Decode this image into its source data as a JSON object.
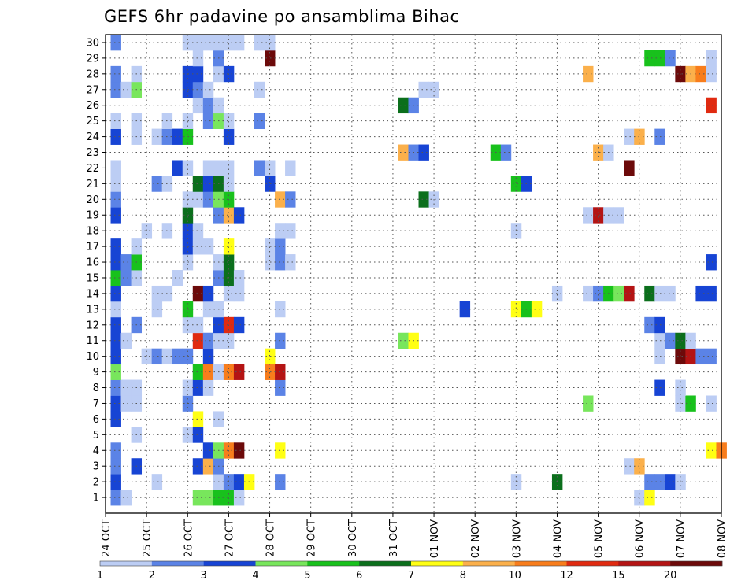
{
  "chart_data": {
    "type": "heatmap",
    "title": "GEFS 6hr padavine po ansamblima Bihac",
    "x_labels": [
      "24 OCT",
      "25 OCT",
      "26 OCT",
      "27 OCT",
      "28 OCT",
      "29 OCT",
      "30 OCT",
      "31 OCT",
      "01 NOV",
      "02 NOV",
      "03 NOV",
      "04 NOV",
      "05 NOV",
      "06 NOV",
      "07 NOV",
      "08 NOV"
    ],
    "y_labels": [
      "1",
      "2",
      "3",
      "4",
      "5",
      "6",
      "7",
      "8",
      "9",
      "10",
      "11",
      "12",
      "13",
      "14",
      "15",
      "16",
      "17",
      "18",
      "19",
      "20",
      "21",
      "22",
      "23",
      "24",
      "25",
      "26",
      "27",
      "28",
      "29",
      "30"
    ],
    "steps_per_day": 4,
    "grid": true,
    "colorbar": {
      "labels": [
        "1",
        "2",
        "3",
        "4",
        "5",
        "6",
        "7",
        "8",
        "10",
        "12",
        "15",
        "20"
      ],
      "colors": [
        "#bccdf4",
        "#5b83e6",
        "#1744d4",
        "#78e65c",
        "#18c11c",
        "#0b6f1c",
        "#ffff14",
        "#fbb04b",
        "#f87d1c",
        "#e02a10",
        "#b41414",
        "#6c0a0a"
      ]
    },
    "cells": [
      {
        "m": 1,
        "t": [
          [
            1,
            2
          ],
          [
            2,
            1
          ],
          [
            9,
            4
          ],
          [
            10,
            4
          ],
          [
            11,
            5
          ],
          [
            12,
            5
          ],
          [
            13,
            1
          ],
          [
            52,
            1
          ],
          [
            53,
            7
          ]
        ]
      },
      {
        "m": 2,
        "t": [
          [
            1,
            3
          ],
          [
            5,
            1
          ],
          [
            11,
            1
          ],
          [
            12,
            2
          ],
          [
            13,
            3
          ],
          [
            14,
            7
          ],
          [
            17,
            2
          ],
          [
            40,
            1
          ],
          [
            44,
            6
          ],
          [
            53,
            2
          ],
          [
            54,
            2
          ],
          [
            55,
            3
          ],
          [
            56,
            1
          ]
        ]
      },
      {
        "m": 3,
        "t": [
          [
            1,
            2
          ],
          [
            3,
            3
          ],
          [
            9,
            3
          ],
          [
            10,
            8
          ],
          [
            11,
            2
          ],
          [
            51,
            1
          ],
          [
            52,
            8
          ]
        ]
      },
      {
        "m": 4,
        "t": [
          [
            1,
            2
          ],
          [
            10,
            3
          ],
          [
            11,
            4
          ],
          [
            12,
            9
          ],
          [
            13,
            12
          ],
          [
            17,
            7
          ],
          [
            59,
            7
          ],
          [
            60,
            9
          ]
        ]
      },
      {
        "m": 5,
        "t": [
          [
            3,
            1
          ],
          [
            8,
            1
          ],
          [
            9,
            3
          ]
        ]
      },
      {
        "m": 6,
        "t": [
          [
            1,
            3
          ],
          [
            9,
            7
          ],
          [
            11,
            1
          ]
        ]
      },
      {
        "m": 7,
        "t": [
          [
            1,
            3
          ],
          [
            2,
            1
          ],
          [
            3,
            1
          ],
          [
            8,
            2
          ],
          [
            47,
            4
          ],
          [
            56,
            1
          ],
          [
            57,
            5
          ],
          [
            59,
            1
          ]
        ]
      },
      {
        "m": 8,
        "t": [
          [
            1,
            2
          ],
          [
            2,
            1
          ],
          [
            3,
            1
          ],
          [
            8,
            1
          ],
          [
            9,
            3
          ],
          [
            10,
            1
          ],
          [
            17,
            2
          ],
          [
            54,
            3
          ],
          [
            56,
            1
          ]
        ]
      },
      {
        "m": 9,
        "t": [
          [
            1,
            4
          ],
          [
            9,
            5
          ],
          [
            10,
            9
          ],
          [
            11,
            1
          ],
          [
            12,
            9
          ],
          [
            13,
            11
          ],
          [
            16,
            9
          ],
          [
            17,
            11
          ]
        ]
      },
      {
        "m": 10,
        "t": [
          [
            1,
            3
          ],
          [
            4,
            1
          ],
          [
            5,
            2
          ],
          [
            6,
            1
          ],
          [
            7,
            2
          ],
          [
            8,
            2
          ],
          [
            10,
            3
          ],
          [
            16,
            7
          ],
          [
            54,
            1
          ],
          [
            56,
            12
          ],
          [
            57,
            11
          ],
          [
            58,
            2
          ],
          [
            59,
            2
          ]
        ]
      },
      {
        "m": 11,
        "t": [
          [
            1,
            3
          ],
          [
            2,
            1
          ],
          [
            9,
            10
          ],
          [
            10,
            2
          ],
          [
            11,
            1
          ],
          [
            12,
            1
          ],
          [
            17,
            2
          ],
          [
            29,
            4
          ],
          [
            30,
            7
          ],
          [
            54,
            1
          ],
          [
            55,
            2
          ],
          [
            56,
            6
          ],
          [
            57,
            1
          ]
        ]
      },
      {
        "m": 12,
        "t": [
          [
            1,
            3
          ],
          [
            3,
            2
          ],
          [
            8,
            1
          ],
          [
            9,
            1
          ],
          [
            11,
            3
          ],
          [
            12,
            10
          ],
          [
            13,
            3
          ],
          [
            53,
            2
          ],
          [
            54,
            3
          ]
        ]
      },
      {
        "m": 13,
        "t": [
          [
            1,
            1
          ],
          [
            5,
            1
          ],
          [
            8,
            5
          ],
          [
            10,
            1
          ],
          [
            11,
            1
          ],
          [
            17,
            1
          ],
          [
            35,
            3
          ],
          [
            40,
            7
          ],
          [
            41,
            5
          ],
          [
            42,
            7
          ]
        ]
      },
      {
        "m": 14,
        "t": [
          [
            1,
            3
          ],
          [
            5,
            1
          ],
          [
            6,
            1
          ],
          [
            9,
            12
          ],
          [
            10,
            3
          ],
          [
            12,
            1
          ],
          [
            13,
            1
          ],
          [
            44,
            1
          ],
          [
            47,
            1
          ],
          [
            48,
            2
          ],
          [
            49,
            5
          ],
          [
            50,
            4
          ],
          [
            51,
            11
          ],
          [
            53,
            6
          ],
          [
            54,
            1
          ],
          [
            55,
            1
          ],
          [
            58,
            3
          ],
          [
            59,
            3
          ]
        ]
      },
      {
        "m": 15,
        "t": [
          [
            1,
            5
          ],
          [
            2,
            2
          ],
          [
            3,
            1
          ],
          [
            7,
            1
          ],
          [
            11,
            2
          ],
          [
            12,
            6
          ],
          [
            13,
            1
          ]
        ]
      },
      {
        "m": 16,
        "t": [
          [
            1,
            3
          ],
          [
            2,
            2
          ],
          [
            3,
            5
          ],
          [
            8,
            1
          ],
          [
            11,
            1
          ],
          [
            12,
            6
          ],
          [
            16,
            1
          ],
          [
            17,
            2
          ],
          [
            18,
            1
          ],
          [
            59,
            3
          ]
        ]
      },
      {
        "m": 17,
        "t": [
          [
            1,
            3
          ],
          [
            3,
            1
          ],
          [
            8,
            3
          ],
          [
            9,
            1
          ],
          [
            10,
            1
          ],
          [
            12,
            7
          ],
          [
            16,
            1
          ],
          [
            17,
            2
          ]
        ]
      },
      {
        "m": 18,
        "t": [
          [
            4,
            1
          ],
          [
            6,
            1
          ],
          [
            8,
            3
          ],
          [
            9,
            1
          ],
          [
            17,
            1
          ],
          [
            18,
            1
          ],
          [
            40,
            1
          ]
        ]
      },
      {
        "m": 19,
        "t": [
          [
            1,
            3
          ],
          [
            8,
            6
          ],
          [
            11,
            2
          ],
          [
            12,
            8
          ],
          [
            13,
            3
          ],
          [
            47,
            1
          ],
          [
            48,
            11
          ],
          [
            49,
            1
          ],
          [
            50,
            1
          ]
        ]
      },
      {
        "m": 20,
        "t": [
          [
            1,
            2
          ],
          [
            8,
            1
          ],
          [
            9,
            1
          ],
          [
            10,
            2
          ],
          [
            11,
            4
          ],
          [
            12,
            5
          ],
          [
            17,
            8
          ],
          [
            18,
            2
          ],
          [
            31,
            6
          ],
          [
            32,
            1
          ]
        ]
      },
      {
        "m": 21,
        "t": [
          [
            1,
            1
          ],
          [
            5,
            2
          ],
          [
            6,
            1
          ],
          [
            9,
            6
          ],
          [
            10,
            3
          ],
          [
            11,
            6
          ],
          [
            12,
            1
          ],
          [
            16,
            3
          ],
          [
            40,
            5
          ],
          [
            41,
            3
          ]
        ]
      },
      {
        "m": 22,
        "t": [
          [
            1,
            1
          ],
          [
            7,
            3
          ],
          [
            8,
            1
          ],
          [
            10,
            1
          ],
          [
            11,
            1
          ],
          [
            12,
            1
          ],
          [
            15,
            2
          ],
          [
            16,
            1
          ],
          [
            18,
            1
          ],
          [
            51,
            12
          ]
        ]
      },
      {
        "m": 23,
        "t": [
          [
            29,
            8
          ],
          [
            30,
            2
          ],
          [
            31,
            3
          ],
          [
            38,
            5
          ],
          [
            39,
            2
          ],
          [
            48,
            8
          ],
          [
            49,
            1
          ]
        ]
      },
      {
        "m": 24,
        "t": [
          [
            1,
            3
          ],
          [
            3,
            1
          ],
          [
            5,
            1
          ],
          [
            6,
            2
          ],
          [
            7,
            3
          ],
          [
            8,
            5
          ],
          [
            12,
            3
          ],
          [
            51,
            1
          ],
          [
            52,
            8
          ],
          [
            54,
            2
          ]
        ]
      },
      {
        "m": 25,
        "t": [
          [
            1,
            1
          ],
          [
            3,
            1
          ],
          [
            6,
            1
          ],
          [
            8,
            1
          ],
          [
            10,
            2
          ],
          [
            11,
            4
          ],
          [
            12,
            1
          ],
          [
            15,
            2
          ]
        ]
      },
      {
        "m": 26,
        "t": [
          [
            9,
            1
          ],
          [
            10,
            2
          ],
          [
            11,
            1
          ],
          [
            29,
            6
          ],
          [
            30,
            2
          ],
          [
            59,
            10
          ]
        ]
      },
      {
        "m": 27,
        "t": [
          [
            1,
            2
          ],
          [
            2,
            1
          ],
          [
            3,
            4
          ],
          [
            8,
            3
          ],
          [
            9,
            2
          ],
          [
            10,
            1
          ],
          [
            15,
            1
          ],
          [
            31,
            1
          ],
          [
            32,
            1
          ]
        ]
      },
      {
        "m": 28,
        "t": [
          [
            1,
            2
          ],
          [
            3,
            1
          ],
          [
            8,
            3
          ],
          [
            9,
            3
          ],
          [
            11,
            1
          ],
          [
            12,
            3
          ],
          [
            47,
            8
          ],
          [
            56,
            12
          ],
          [
            57,
            8
          ],
          [
            58,
            9
          ],
          [
            59,
            1
          ]
        ]
      },
      {
        "m": 29,
        "t": [
          [
            9,
            1
          ],
          [
            11,
            2
          ],
          [
            16,
            12
          ],
          [
            53,
            5
          ],
          [
            54,
            5
          ],
          [
            55,
            2
          ],
          [
            59,
            1
          ]
        ]
      },
      {
        "m": 30,
        "t": [
          [
            1,
            2
          ],
          [
            8,
            1
          ],
          [
            9,
            1
          ],
          [
            10,
            1
          ],
          [
            11,
            1
          ],
          [
            12,
            1
          ],
          [
            13,
            1
          ],
          [
            15,
            1
          ],
          [
            16,
            1
          ]
        ]
      }
    ]
  }
}
